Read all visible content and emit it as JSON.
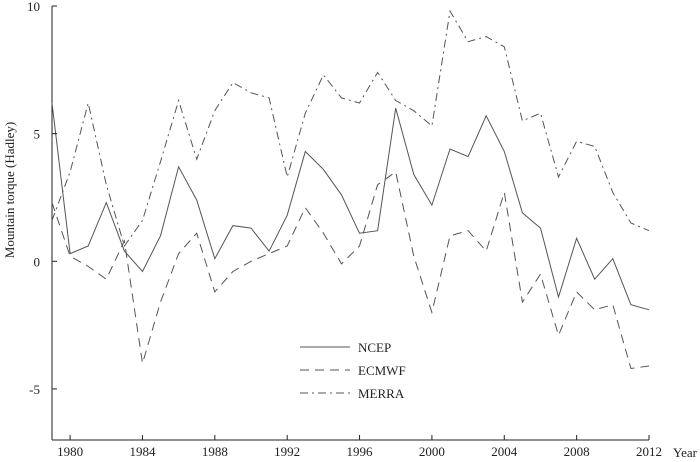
{
  "chart_data": {
    "type": "line",
    "title": "",
    "xlabel": "Year",
    "ylabel": "Mountain torque (Hadley)",
    "xlim": [
      1979,
      2012
    ],
    "ylim": [
      -7,
      10
    ],
    "x_ticks": [
      1980,
      1984,
      1988,
      1992,
      1996,
      2000,
      2004,
      2008,
      2012
    ],
    "y_ticks": [
      10,
      5,
      0,
      -5
    ],
    "x_tick_labels": [
      "1980",
      "1984",
      "1988",
      "1992",
      "1996",
      "2000",
      "2004",
      "2008",
      "2012"
    ],
    "y_tick_labels": [
      "10",
      "5",
      "0",
      "-5"
    ],
    "grid": false,
    "legend_position": "lower-center",
    "x": [
      1979,
      1980,
      1981,
      1982,
      1983,
      1984,
      1985,
      1986,
      1987,
      1988,
      1989,
      1990,
      1991,
      1992,
      1993,
      1994,
      1995,
      1996,
      1997,
      1998,
      1999,
      2000,
      2001,
      2002,
      2003,
      2004,
      2005,
      2006,
      2007,
      2008,
      2009,
      2010,
      2011,
      2012
    ],
    "series": [
      {
        "name": "NCEP",
        "dash": "solid",
        "values": [
          6.2,
          0.3,
          0.6,
          2.3,
          0.4,
          -0.4,
          1.0,
          3.7,
          2.4,
          0.1,
          1.4,
          1.3,
          0.4,
          1.8,
          4.3,
          3.6,
          2.6,
          1.1,
          1.2,
          6.0,
          3.4,
          2.2,
          4.4,
          4.1,
          5.7,
          4.3,
          1.9,
          1.3,
          -1.4,
          0.9,
          -0.7,
          0.1,
          -1.7,
          -1.9
        ]
      },
      {
        "name": "ECMWF",
        "dash": "dashed",
        "values": [
          2.3,
          0.2,
          -0.2,
          -0.7,
          0.8,
          -4.0,
          -1.6,
          0.3,
          1.1,
          -1.2,
          -0.4,
          0.0,
          0.3,
          0.6,
          2.1,
          1.1,
          -0.1,
          0.6,
          3.0,
          3.5,
          0.2,
          -2.0,
          1.0,
          1.2,
          0.4,
          2.7,
          -1.6,
          -0.5,
          -2.9,
          -1.2,
          -1.9,
          -1.7,
          -4.2,
          -4.1
        ]
      },
      {
        "name": "MERRA",
        "dash": "dashdot",
        "values": [
          1.6,
          3.5,
          6.2,
          3.0,
          0.6,
          1.6,
          3.9,
          6.3,
          4.0,
          5.9,
          7.0,
          6.6,
          6.4,
          3.3,
          5.8,
          7.3,
          6.4,
          6.2,
          7.4,
          6.3,
          5.9,
          5.3,
          9.8,
          8.6,
          8.8,
          8.4,
          5.5,
          5.8,
          3.3,
          4.7,
          4.5,
          2.7,
          1.5,
          1.2
        ]
      }
    ],
    "colors": {
      "line": "#555555",
      "axis": "#222222"
    }
  }
}
